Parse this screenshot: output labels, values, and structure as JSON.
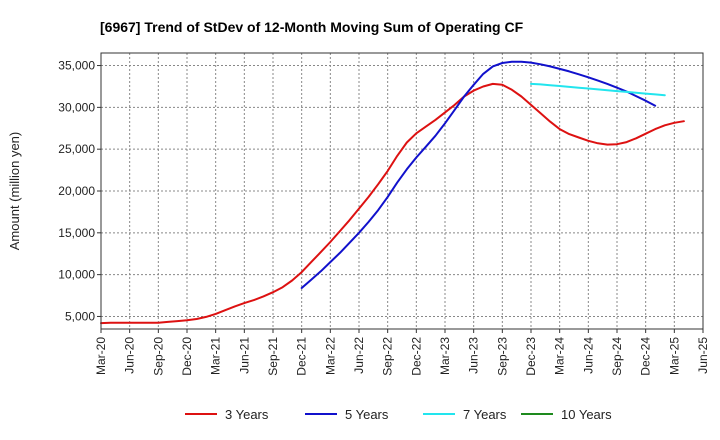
{
  "chart_data": {
    "type": "line",
    "title": "[6967]  Trend of StDev of 12-Month Moving Sum of Operating CF",
    "xlabel": "",
    "ylabel": "Amount (million yen)",
    "ylim": [
      3500,
      36500
    ],
    "yticks": [
      5000,
      10000,
      15000,
      20000,
      25000,
      30000,
      35000
    ],
    "ytick_labels": [
      "5,000",
      "10,000",
      "15,000",
      "20,000",
      "25,000",
      "30,000",
      "35,000"
    ],
    "xticks": [
      "Mar-20",
      "Jun-20",
      "Sep-20",
      "Dec-20",
      "Mar-21",
      "Jun-21",
      "Sep-21",
      "Dec-21",
      "Mar-22",
      "Jun-22",
      "Sep-22",
      "Dec-22",
      "Mar-23",
      "Jun-23",
      "Sep-23",
      "Dec-23",
      "Mar-24",
      "Jun-24",
      "Sep-24",
      "Dec-24",
      "Mar-25",
      "Jun-25"
    ],
    "grid": true,
    "legend_position": "bottom",
    "series": [
      {
        "name": "3 Years",
        "color": "#dd1111",
        "start_index": 0,
        "values": [
          4200,
          4250,
          4250,
          4250,
          4250,
          4250,
          4250,
          4350,
          4450,
          4550,
          4700,
          4950,
          5300,
          5750,
          6200,
          6600,
          6950,
          7400,
          7900,
          8500,
          9300,
          10300,
          11500,
          12700,
          13900,
          15200,
          16500,
          17900,
          19300,
          20800,
          22400,
          24200,
          25800,
          26900,
          27700,
          28500,
          29400,
          30300,
          31300,
          32000,
          32500,
          32800,
          32700,
          32100,
          31300,
          30300,
          29300,
          28300,
          27400,
          26800,
          26400,
          26000,
          25700,
          25550,
          25600,
          25850,
          26300,
          26850,
          27400,
          27850,
          28150,
          28350
        ]
      },
      {
        "name": "5 Years",
        "color": "#1111cc",
        "start_index": 21,
        "values": [
          8400,
          9400,
          10400,
          11500,
          12600,
          13800,
          15000,
          16300,
          17700,
          19300,
          21000,
          22600,
          24000,
          25300,
          26600,
          28100,
          29700,
          31300,
          32700,
          34000,
          34900,
          35300,
          35450,
          35450,
          35350,
          35150,
          34900,
          34600,
          34300,
          33950,
          33600,
          33200,
          32800,
          32350,
          31900,
          31350,
          30800,
          30200
        ]
      },
      {
        "name": "7 Years",
        "color": "#22e5ee",
        "start_index": 45,
        "values": [
          32800,
          32750,
          32650,
          32550,
          32450,
          32350,
          32250,
          32150,
          32050,
          31950,
          31850,
          31750,
          31650,
          31550,
          31450
        ]
      },
      {
        "name": "10 Years",
        "color": "#1e8a1e",
        "start_index": 0,
        "values": []
      }
    ]
  }
}
